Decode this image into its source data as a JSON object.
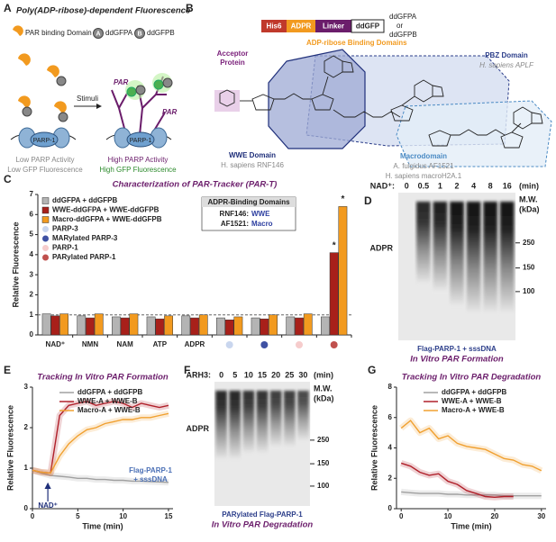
{
  "panels": {
    "letters": [
      "A",
      "B",
      "C",
      "D",
      "E",
      "F",
      "G"
    ],
    "A": {
      "title": "Poly(ADP-ribose)-dependent Fluorescence",
      "legend": [
        "PAR binding Domain",
        "A",
        "ddGFPA",
        "B",
        "ddGFPB"
      ],
      "stimuli": "Stimuli",
      "par": "PAR",
      "parp": "PARP-1",
      "low": [
        "Low PARP Activity",
        "Low GFP Fluorescence"
      ],
      "high": [
        "High PARP Activity",
        "High GFP Fluorescence"
      ]
    },
    "B": {
      "construct": [
        "His6",
        "ADPR",
        "Linker",
        "ddGFP"
      ],
      "construct_note": [
        "ddGFPA",
        "or",
        "ddGFPB"
      ],
      "domains_title": "ADP-ribose Binding Domains",
      "acceptor": [
        "Acceptor",
        "Protein"
      ],
      "wwe": [
        "WWE Domain",
        "H. sapiens RNF146"
      ],
      "pbz": [
        "PBZ Domain",
        "H. sapiens APLF"
      ],
      "macro": [
        "Macrodomain",
        "A. fulgidus AF1521",
        "H. sapiens macroH2A.1"
      ]
    },
    "D": {
      "lane_title": "NAD⁺:",
      "lanes": [
        "0",
        "0.5",
        "1",
        "2",
        "4",
        "8",
        "16"
      ],
      "unit": "(min)",
      "mw_title": [
        "M.W.",
        "(kDa)"
      ],
      "mw": [
        "250",
        "150",
        "100"
      ],
      "band": "ADPR",
      "caption": [
        "Flag-PARP-1 + sssDNA",
        "In Vitro PAR Formation"
      ]
    },
    "F": {
      "lane_title": "ARH3:",
      "lanes": [
        "0",
        "5",
        "10",
        "15",
        "20",
        "25",
        "30"
      ],
      "unit": "(min)",
      "mw_title": [
        "M.W.",
        "(kDa)"
      ],
      "mw": [
        "250",
        "150",
        "100"
      ],
      "band": "ADPR",
      "caption": [
        "PARylated Flag-PARP-1",
        "In Vitro PAR Degradation"
      ]
    }
  },
  "chart_data": [
    {
      "type": "bar",
      "title": "Characterization of PAR-Tracker (PAR-T)",
      "y_label": "Relative Fluorescence",
      "categories": [
        "NAD⁺",
        "NMN",
        "NAM",
        "ATP",
        "ADPR",
        null,
        null,
        null,
        null
      ],
      "series": [
        {
          "name": "ddGFPA + ddGFPB",
          "color": "#b4b4b4",
          "values": [
            1.05,
            0.95,
            0.9,
            0.9,
            0.95,
            0.85,
            0.85,
            0.9,
            0.9
          ]
        },
        {
          "name": "WWE-ddGFPA + WWE-ddGFPB",
          "color": "#a8201a",
          "values": [
            0.95,
            0.85,
            0.85,
            0.8,
            0.85,
            0.75,
            0.8,
            0.85,
            4.1
          ]
        },
        {
          "name": "Macro-ddGFPA + WWE-ddGFPB",
          "color": "#f29a1f",
          "values": [
            1.05,
            1.05,
            1.05,
            0.95,
            1.0,
            0.9,
            1.0,
            1.05,
            6.4
          ]
        }
      ],
      "markers": [
        {
          "name": "PARP-3",
          "color": "#c9d6ee"
        },
        {
          "name": "MARylated PARP-3",
          "color": "#3f51a3"
        },
        {
          "name": "PARP-1",
          "color": "#f6cccc"
        },
        {
          "name": "PARylated PARP-1",
          "color": "#c0504d"
        }
      ],
      "inset": {
        "title": "ADPR-Binding Domains",
        "rows": [
          [
            "RNF146:",
            "WWE"
          ],
          [
            "AF1521:",
            "Macro"
          ]
        ]
      },
      "annotations": [
        "*",
        "*"
      ],
      "reference_line": 1,
      "ylim": [
        0,
        7
      ],
      "yticks": [
        0,
        1,
        2,
        3,
        4,
        5,
        6,
        7
      ]
    },
    {
      "type": "line",
      "title": "Tracking In Vitro PAR Formation",
      "x_label": "Time (min)",
      "y_label": "Relative Fluorescence",
      "x": [
        0,
        1,
        2,
        3,
        4,
        5,
        6,
        7,
        8,
        9,
        10,
        11,
        12,
        13,
        14,
        15
      ],
      "series": [
        {
          "name": "ddGFPA + ddGFPB",
          "color": "#a0a0a0",
          "values": [
            0.95,
            0.88,
            0.82,
            0.8,
            0.78,
            0.75,
            0.75,
            0.72,
            0.72,
            0.7,
            0.7,
            0.68,
            0.68,
            0.67,
            0.66,
            0.65
          ]
        },
        {
          "name": "WWE-A + WWE-B",
          "color": "#b0202a",
          "values": [
            0.95,
            0.9,
            0.88,
            2.3,
            2.55,
            2.6,
            2.65,
            2.55,
            2.6,
            2.65,
            2.6,
            2.5,
            2.6,
            2.55,
            2.5,
            2.55
          ]
        },
        {
          "name": "Macro-A + WWE-B",
          "color": "#f0a030",
          "values": [
            0.95,
            0.9,
            0.88,
            1.3,
            1.6,
            1.8,
            1.95,
            2.0,
            2.1,
            2.15,
            2.2,
            2.2,
            2.25,
            2.25,
            2.3,
            2.35
          ]
        }
      ],
      "annotations": [
        {
          "text": "NAD⁺",
          "x": 1.7
        }
      ],
      "notes": [
        "Flag-PARP-1",
        "+ sssDNA"
      ],
      "xlim": [
        0,
        15.5
      ],
      "xticks": [
        0,
        5,
        10,
        15
      ],
      "ylim": [
        0,
        3
      ],
      "yticks": [
        0,
        1,
        2,
        3
      ]
    },
    {
      "type": "line",
      "title": "Tracking In Vitro PAR Degradation",
      "x_label": "Time (min)",
      "y_label": "Relative Fluorescence",
      "x": [
        0,
        2,
        4,
        6,
        8,
        10,
        12,
        14,
        16,
        18,
        20,
        22,
        24,
        26,
        28,
        30
      ],
      "series": [
        {
          "name": "ddGFPA + ddGFPB",
          "color": "#a0a0a0",
          "values": [
            1.1,
            1.05,
            1.0,
            1.0,
            1.0,
            0.95,
            0.95,
            0.9,
            0.9,
            0.9,
            0.9,
            0.85,
            0.85,
            0.85,
            0.85,
            0.85
          ]
        },
        {
          "name": "WWE-A + WWE-B",
          "color": "#b0202a",
          "values": [
            3.0,
            2.8,
            2.4,
            2.2,
            2.3,
            1.8,
            1.6,
            1.2,
            1.0,
            0.8,
            0.75,
            0.8,
            0.8,
            null,
            null,
            null
          ]
        },
        {
          "name": "Macro-A + WWE-B",
          "color": "#f0a030",
          "values": [
            5.3,
            5.8,
            5.0,
            5.3,
            4.6,
            4.8,
            4.3,
            4.1,
            4.0,
            3.9,
            3.6,
            3.3,
            3.2,
            2.9,
            2.8,
            2.5
          ]
        }
      ],
      "xlim": [
        -1,
        31
      ],
      "xticks": [
        0,
        10,
        20,
        30
      ],
      "ylim": [
        0,
        8
      ],
      "yticks": [
        0,
        2,
        4,
        6,
        8
      ]
    }
  ]
}
